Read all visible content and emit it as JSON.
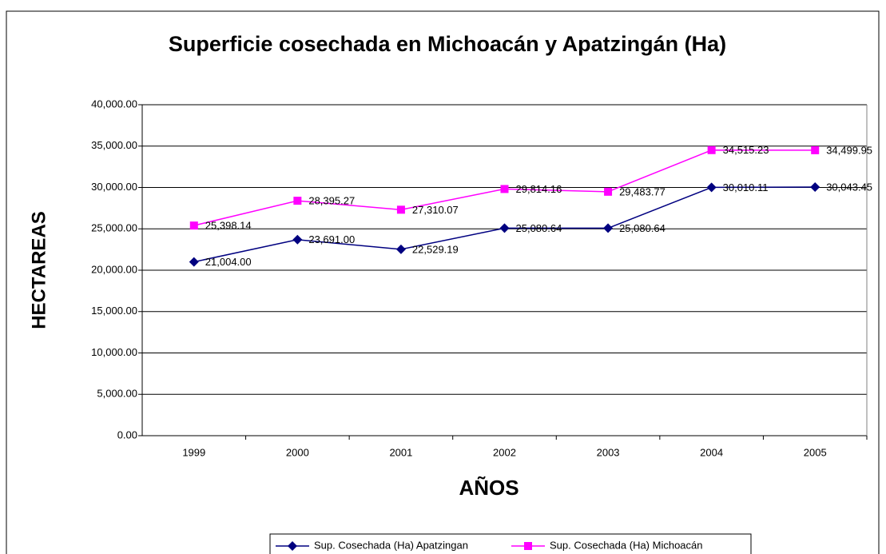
{
  "chart_data": {
    "type": "line",
    "title": "Superficie cosechada en Michoacán y Apatzingán (Ha)",
    "xlabel": "AÑOS",
    "ylabel": "HECTAREAS",
    "categories": [
      "1999",
      "2000",
      "2001",
      "2002",
      "2003",
      "2004",
      "2005"
    ],
    "series": [
      {
        "name": "Sup. Cosechada (Ha) Apatzingan",
        "color": "#000080",
        "marker": "diamond",
        "values": [
          21004,
          23691,
          22529.19,
          25080.64,
          25080.64,
          30010.11,
          30043.45
        ],
        "value_labels": [
          "21,004.00",
          "23,691.00",
          "22,529.19",
          "25,080.64",
          "25,080.64",
          "30,010.11",
          "30,043.45"
        ]
      },
      {
        "name": "Sup. Cosechada (Ha) Michoacán",
        "color": "#ff00ff",
        "marker": "square",
        "values": [
          25398.14,
          28395.27,
          27310.07,
          29814.16,
          29483.77,
          34515.23,
          34499.95
        ],
        "value_labels": [
          "25,398.14",
          "28,395.27",
          "27,310.07",
          "29,814.16",
          "29,483.77",
          "34,515.23",
          "34,499.95"
        ]
      }
    ],
    "ylim": [
      0,
      40000
    ],
    "yticks": [
      {
        "value": 0,
        "label": "0.00"
      },
      {
        "value": 5000,
        "label": "5,000.00"
      },
      {
        "value": 10000,
        "label": "10,000.00"
      },
      {
        "value": 15000,
        "label": "15,000.00"
      },
      {
        "value": 20000,
        "label": "20,000.00"
      },
      {
        "value": 25000,
        "label": "25,000.00"
      },
      {
        "value": 30000,
        "label": "30,000.00"
      },
      {
        "value": 35000,
        "label": "35,000.00"
      },
      {
        "value": 40000,
        "label": "40,000.00"
      }
    ],
    "grid": true,
    "legend": "bottom"
  }
}
